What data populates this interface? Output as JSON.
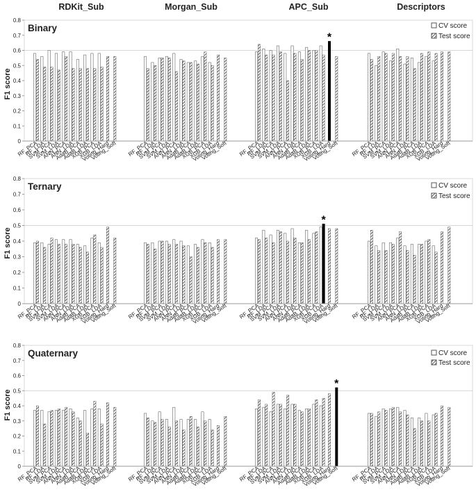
{
  "figure": {
    "column_headers": [
      "RDKit_Sub",
      "Morgan_Sub",
      "APC_Sub",
      "Descriptors"
    ],
    "method_labels": [
      "RF_PCA",
      "RF_LDA",
      "SVM_PCA",
      "SVM_LDA",
      "ANN_PCA",
      "ANN_LDA",
      "AdaB_PCA",
      "AdaB_LDA",
      "XGB_PCA",
      "XGB_LDA",
      "Voting_Hard",
      "Voting_Soft"
    ],
    "legend": {
      "cv": "CV score",
      "test": "Test score"
    },
    "best_marker": "*",
    "colors": {
      "bar_fill": "#ffffff",
      "bar_stroke": "#666666",
      "hatch": "#333333",
      "best": "#000000",
      "axis": "#999999",
      "grid": "#d9d9d9",
      "text": "#222222"
    }
  },
  "chart_data": [
    {
      "type": "bar",
      "title": "Binary",
      "ylabel": "F1 score",
      "ylim": [
        0,
        0.8
      ],
      "yticks": [
        "0",
        "0.1",
        "0.2",
        "0.3",
        "0.4",
        "0.5",
        "0.6",
        "0.7",
        "0.8"
      ],
      "reference_line": 0.6,
      "best": {
        "group": 2,
        "index": 10,
        "series": "test",
        "value": 0.66
      },
      "groups": [
        {
          "name": "RDKit_Sub",
          "cv": [
            0.58,
            0.56,
            0.6,
            0.58,
            0.59,
            0.59,
            0.54,
            0.57,
            0.58,
            0.58,
            null,
            null
          ],
          "test": [
            0.54,
            0.49,
            0.49,
            0.47,
            0.56,
            0.48,
            0.48,
            0.48,
            0.48,
            0.49,
            0.56,
            0.56
          ]
        },
        {
          "name": "Morgan_Sub",
          "cv": [
            0.56,
            0.52,
            0.55,
            0.56,
            0.58,
            0.54,
            0.52,
            0.53,
            0.56,
            0.52,
            null,
            null
          ],
          "test": [
            0.48,
            0.5,
            0.55,
            0.55,
            0.46,
            0.53,
            0.52,
            0.51,
            0.59,
            0.5,
            0.57,
            0.55
          ]
        },
        {
          "name": "APC_Sub",
          "cv": [
            0.59,
            0.61,
            0.6,
            0.63,
            0.58,
            0.63,
            0.59,
            0.62,
            0.6,
            0.63,
            null,
            null
          ],
          "test": [
            0.64,
            0.57,
            0.57,
            0.59,
            0.4,
            0.58,
            0.54,
            0.6,
            0.6,
            0.57,
            0.66,
            0.56
          ]
        },
        {
          "name": "Descriptors",
          "cv": [
            0.58,
            0.5,
            0.59,
            0.53,
            0.61,
            0.51,
            0.55,
            0.52,
            0.56,
            0.53,
            null,
            null
          ],
          "test": [
            0.54,
            0.56,
            0.58,
            0.58,
            0.56,
            0.56,
            0.48,
            0.58,
            0.59,
            0.58,
            0.59,
            0.59
          ]
        }
      ]
    },
    {
      "type": "bar",
      "title": "Ternary",
      "ylabel": "F1 score",
      "ylim": [
        0,
        0.8
      ],
      "yticks": [
        "0",
        "0.1",
        "0.2",
        "0.3",
        "0.4",
        "0.5",
        "0.6",
        "0.7",
        "0.8"
      ],
      "reference_line": 0.5,
      "best": {
        "group": 2,
        "index": 9,
        "series": "test",
        "value": 0.51
      },
      "groups": [
        {
          "name": "RDKit_Sub",
          "cv": [
            0.39,
            0.39,
            0.38,
            0.41,
            0.41,
            0.41,
            0.38,
            0.37,
            0.42,
            0.39,
            null,
            null
          ],
          "test": [
            0.4,
            0.36,
            0.42,
            0.38,
            0.38,
            0.38,
            0.36,
            0.33,
            0.44,
            0.36,
            0.49,
            0.42
          ]
        },
        {
          "name": "Morgan_Sub",
          "cv": [
            0.39,
            0.39,
            0.4,
            0.4,
            0.41,
            0.4,
            0.37,
            0.38,
            0.41,
            0.39,
            null,
            null
          ],
          "test": [
            0.38,
            0.35,
            0.4,
            0.38,
            0.38,
            0.37,
            0.3,
            0.36,
            0.39,
            0.36,
            0.41,
            0.41
          ]
        },
        {
          "name": "APC_Sub",
          "cv": [
            0.42,
            0.47,
            0.44,
            0.47,
            0.45,
            0.48,
            0.39,
            0.47,
            0.45,
            0.49,
            null,
            null
          ],
          "test": [
            0.41,
            0.42,
            0.39,
            0.46,
            0.4,
            0.42,
            0.39,
            0.41,
            0.46,
            0.51,
            0.48,
            0.48
          ]
        },
        {
          "name": "Descriptors",
          "cv": [
            0.4,
            0.37,
            0.39,
            0.39,
            0.42,
            0.37,
            0.38,
            0.38,
            0.4,
            0.37,
            null,
            null
          ],
          "test": [
            0.47,
            0.34,
            0.34,
            0.38,
            0.46,
            0.34,
            0.31,
            0.38,
            0.41,
            0.33,
            0.46,
            0.49
          ]
        }
      ]
    },
    {
      "type": "bar",
      "title": "Quaternary",
      "ylabel": "F1 score",
      "ylim": [
        0,
        0.8
      ],
      "yticks": [
        "0",
        "0.1",
        "0.2",
        "0.3",
        "0.4",
        "0.5",
        "0.6",
        "0.7",
        "0.8"
      ],
      "reference_line": 0.5,
      "best": {
        "group": 2,
        "index": 11,
        "series": "test",
        "value": 0.52
      },
      "groups": [
        {
          "name": "RDKit_Sub",
          "cv": [
            0.37,
            0.37,
            0.36,
            0.37,
            0.37,
            0.38,
            0.32,
            0.37,
            0.38,
            0.38,
            null,
            null
          ],
          "test": [
            0.4,
            0.28,
            0.37,
            0.38,
            0.39,
            0.36,
            0.3,
            0.22,
            0.43,
            0.28,
            0.42,
            0.39
          ]
        },
        {
          "name": "Morgan_Sub",
          "cv": [
            0.35,
            0.3,
            0.36,
            0.31,
            0.39,
            0.31,
            0.31,
            0.31,
            0.36,
            0.31,
            null,
            null
          ],
          "test": [
            0.32,
            0.29,
            0.31,
            0.26,
            0.3,
            0.24,
            0.33,
            0.26,
            0.3,
            0.24,
            0.27,
            0.33
          ]
        },
        {
          "name": "APC_Sub",
          "cv": [
            0.38,
            0.39,
            0.36,
            0.41,
            0.38,
            0.41,
            0.37,
            0.38,
            0.41,
            0.4,
            null,
            null
          ],
          "test": [
            0.44,
            0.41,
            0.49,
            0.41,
            0.47,
            0.41,
            0.36,
            0.38,
            0.44,
            0.45,
            0.48,
            0.52
          ]
        },
        {
          "name": "Descriptors",
          "cv": [
            0.35,
            0.33,
            0.38,
            0.38,
            0.39,
            0.37,
            0.32,
            0.32,
            0.35,
            0.34,
            null,
            null
          ],
          "test": [
            0.35,
            0.36,
            0.37,
            0.39,
            0.36,
            0.34,
            0.25,
            0.3,
            0.3,
            0.35,
            0.4,
            0.39
          ]
        }
      ]
    }
  ]
}
